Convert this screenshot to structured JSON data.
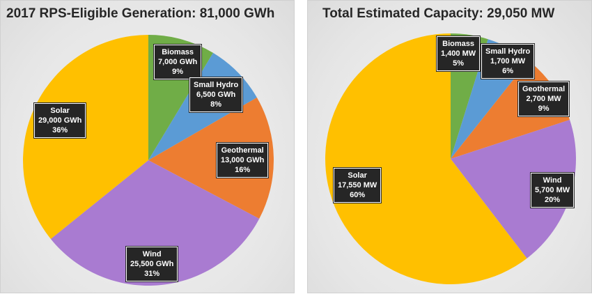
{
  "chart_data": [
    {
      "type": "pie",
      "title": "2017 RPS-Eligible Generation: 81,000 GWh",
      "slices": [
        {
          "name": "Biomass",
          "value": 7000,
          "value_label": "7,000 GWh",
          "pct_label": "9%",
          "color": "#70AD47"
        },
        {
          "name": "Small Hydro",
          "value": 6500,
          "value_label": "6,500 GWh",
          "pct_label": "8%",
          "color": "#5B9BD5"
        },
        {
          "name": "Geothermal",
          "value": 13000,
          "value_label": "13,000 GWh",
          "pct_label": "16%",
          "color": "#ED7D31"
        },
        {
          "name": "Wind",
          "value": 25500,
          "value_label": "25,500 GWh",
          "pct_label": "31%",
          "color": "#A97BD1"
        },
        {
          "name": "Solar",
          "value": 29000,
          "value_label": "29,000 GWh",
          "pct_label": "36%",
          "color": "#FFC000"
        }
      ]
    },
    {
      "type": "pie",
      "title": "Total Estimated Capacity: 29,050 MW",
      "slices": [
        {
          "name": "Biomass",
          "value": 1400,
          "value_label": "1,400 MW",
          "pct_label": "5%",
          "color": "#70AD47"
        },
        {
          "name": "Small Hydro",
          "value": 1700,
          "value_label": "1,700 MW",
          "pct_label": "6%",
          "color": "#5B9BD5"
        },
        {
          "name": "Geothermal",
          "value": 2700,
          "value_label": "2,700 MW",
          "pct_label": "9%",
          "color": "#ED7D31"
        },
        {
          "name": "Wind",
          "value": 5700,
          "value_label": "5,700 MW",
          "pct_label": "20%",
          "color": "#A97BD1"
        },
        {
          "name": "Solar",
          "value": 17550,
          "value_label": "17,550 MW",
          "pct_label": "60%",
          "color": "#FFC000"
        }
      ]
    }
  ]
}
